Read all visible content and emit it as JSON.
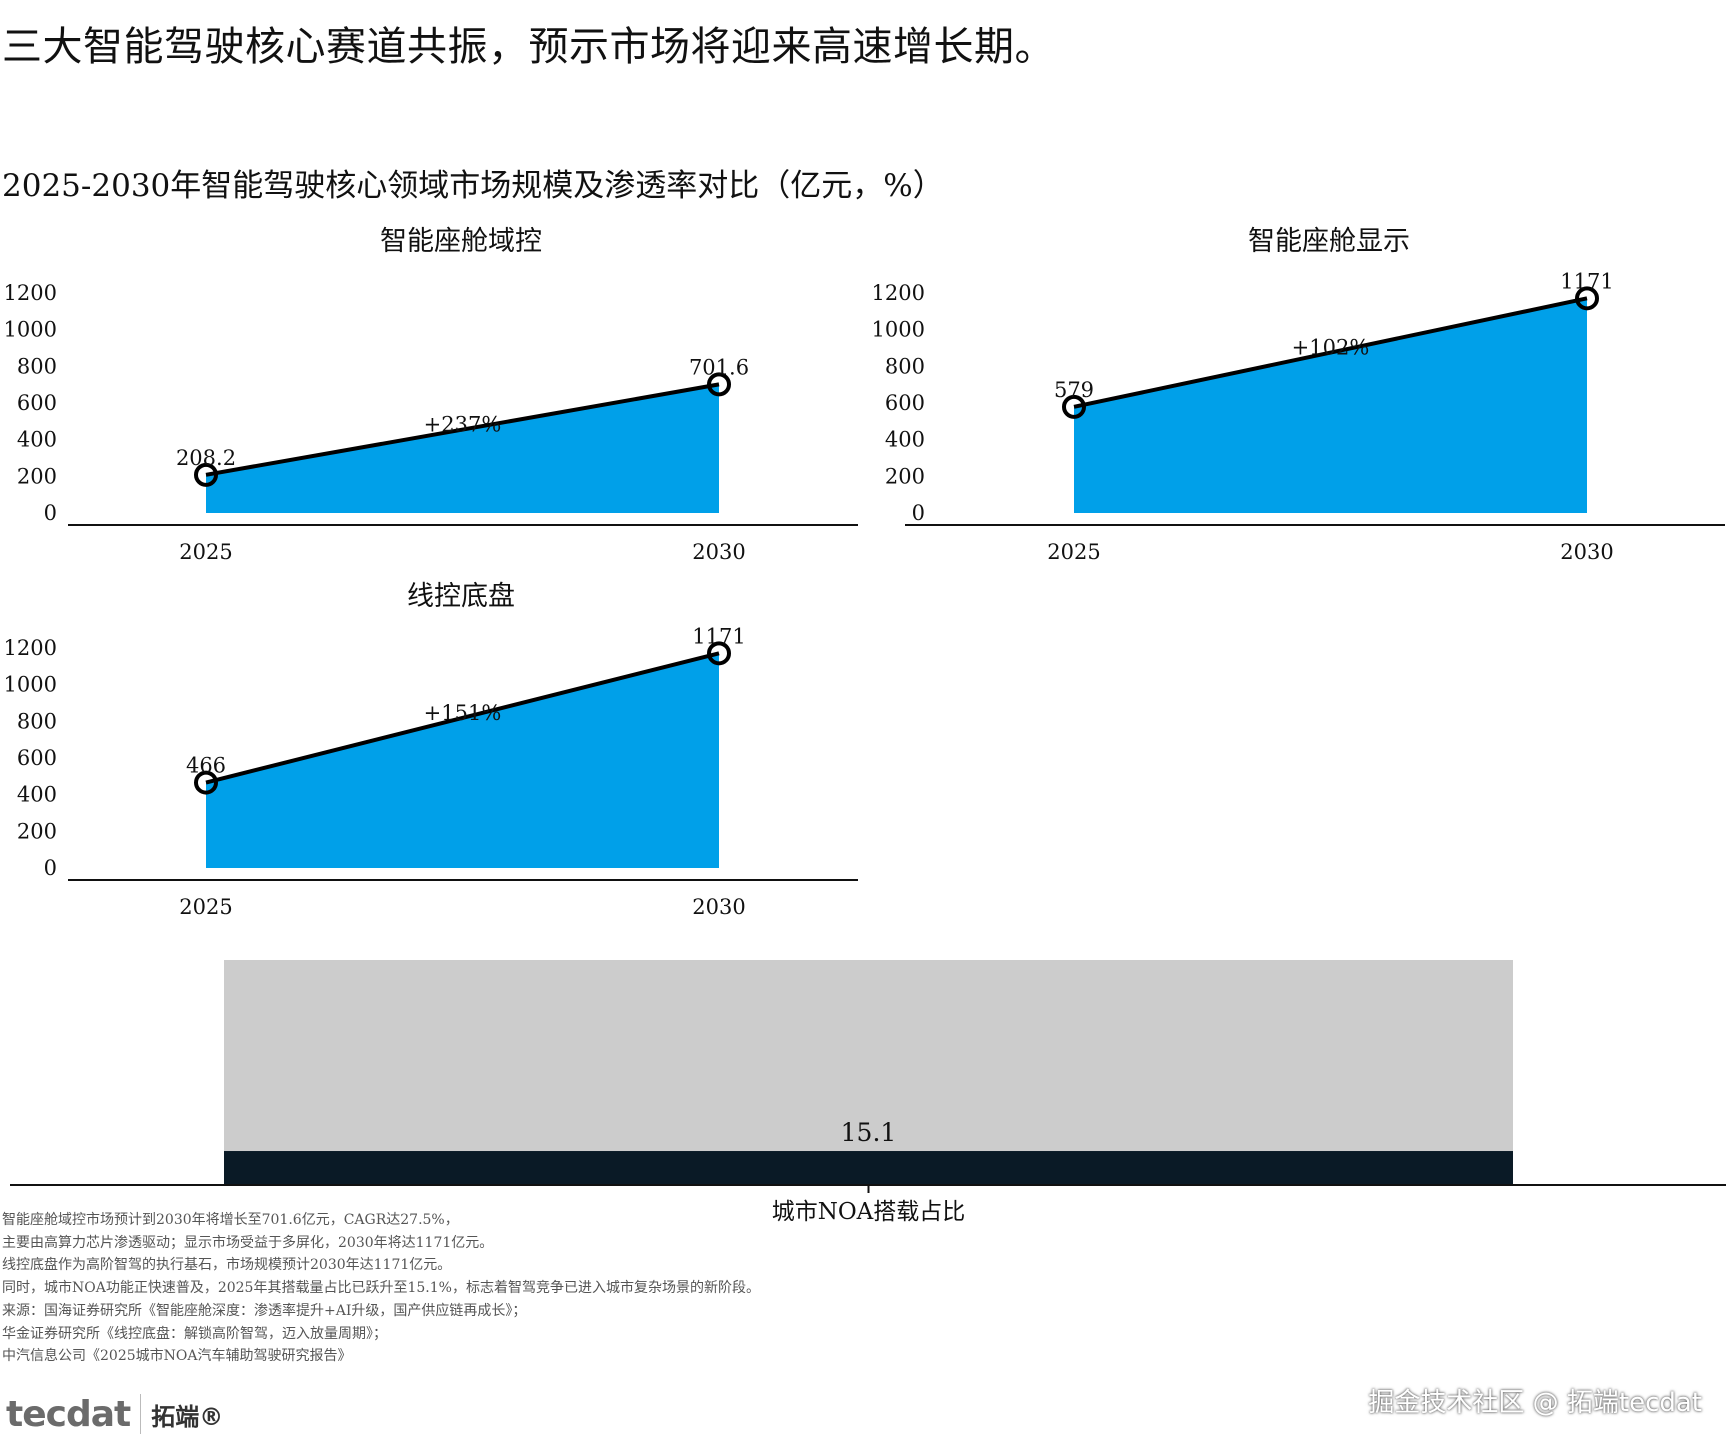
{
  "headline": "三大智能驾驶核心赛道共振，预示市场将迎来高速增长期。",
  "figure_title": "2025-2030年智能驾驶核心领域市场规模及渗透率对比（亿元，%）",
  "colors": {
    "area": "#00a0e9",
    "line": "#000000",
    "bar_bg": "#cccccc",
    "bar_fill": "#0a1a26"
  },
  "chart_data": [
    {
      "type": "area",
      "title": "智能座舱域控",
      "categories": [
        "2025",
        "2030"
      ],
      "values": [
        208.2,
        701.6
      ],
      "value_labels": [
        "208.2",
        "701.6"
      ],
      "growth_label": "+237%",
      "yticks": [
        "0",
        "200",
        "400",
        "600",
        "800",
        "1000",
        "1200"
      ],
      "ylim": [
        0,
        1200
      ]
    },
    {
      "type": "area",
      "title": "智能座舱显示",
      "categories": [
        "2025",
        "2030"
      ],
      "values": [
        579,
        1171
      ],
      "value_labels": [
        "579",
        "1171"
      ],
      "growth_label": "+102%",
      "yticks": [
        "0",
        "200",
        "400",
        "600",
        "800",
        "1000",
        "1200"
      ],
      "ylim": [
        0,
        1200
      ]
    },
    {
      "type": "area",
      "title": "线控底盘",
      "categories": [
        "2025",
        "2030"
      ],
      "values": [
        466,
        1171
      ],
      "value_labels": [
        "466",
        "1171"
      ],
      "growth_label": "+151%",
      "yticks": [
        "0",
        "200",
        "400",
        "600",
        "800",
        "1000",
        "1200"
      ],
      "ylim": [
        0,
        1200
      ]
    },
    {
      "type": "bar",
      "categories": [
        "城市NOA搭载占比"
      ],
      "values": [
        15.1
      ],
      "value_labels": [
        "15.1"
      ],
      "ylim": [
        0,
        100
      ]
    }
  ],
  "notes": [
    "智能座舱域控市场预计到2030年将增长至701.6亿元，CAGR达27.5%，",
    "主要由高算力芯片渗透驱动；显示市场受益于多屏化，2030年将达1171亿元。",
    "线控底盘作为高阶智驾的执行基石，市场规模预计2030年达1171亿元。",
    "同时，城市NOA功能正快速普及，2025年其搭载量占比已跃升至15.1%，标志着智驾竞争已进入城市复杂场景的新阶段。",
    "来源：国海证券研究所《智能座舱深度：渗透率提升+AI升级，国产供应链再成长》；",
    "华金证券研究所《线控底盘：解锁高阶智驾，迈入放量周期》；",
    "中汽信息公司《2025城市NOA汽车辅助驾驶研究报告》"
  ],
  "logo": {
    "mark": "tecdat",
    "name": "拓端®"
  },
  "watermark": "掘金技术社区 @ 拓端tecdat"
}
